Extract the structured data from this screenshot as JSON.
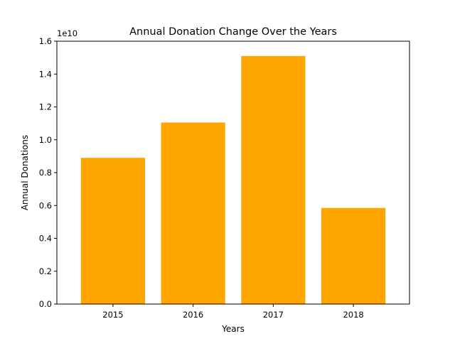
{
  "chart_data": {
    "type": "bar",
    "title": "Annual Donation Change Over the Years",
    "xlabel": "Years",
    "ylabel": "Annual Donations",
    "scale_label": "1e10",
    "categories": [
      "2015",
      "2016",
      "2017",
      "2018"
    ],
    "values": [
      8900000000,
      11050000000,
      15100000000,
      5850000000
    ],
    "ylim": [
      0,
      16000000000
    ],
    "yticks": [
      0,
      2000000000,
      4000000000,
      6000000000,
      8000000000,
      10000000000,
      12000000000,
      14000000000,
      16000000000
    ],
    "ytick_labels": [
      "0.0",
      "0.2",
      "0.4",
      "0.6",
      "0.8",
      "1.0",
      "1.2",
      "1.4",
      "1.6"
    ],
    "bar_color": "#ffa500",
    "grid": false,
    "legend": "none"
  }
}
